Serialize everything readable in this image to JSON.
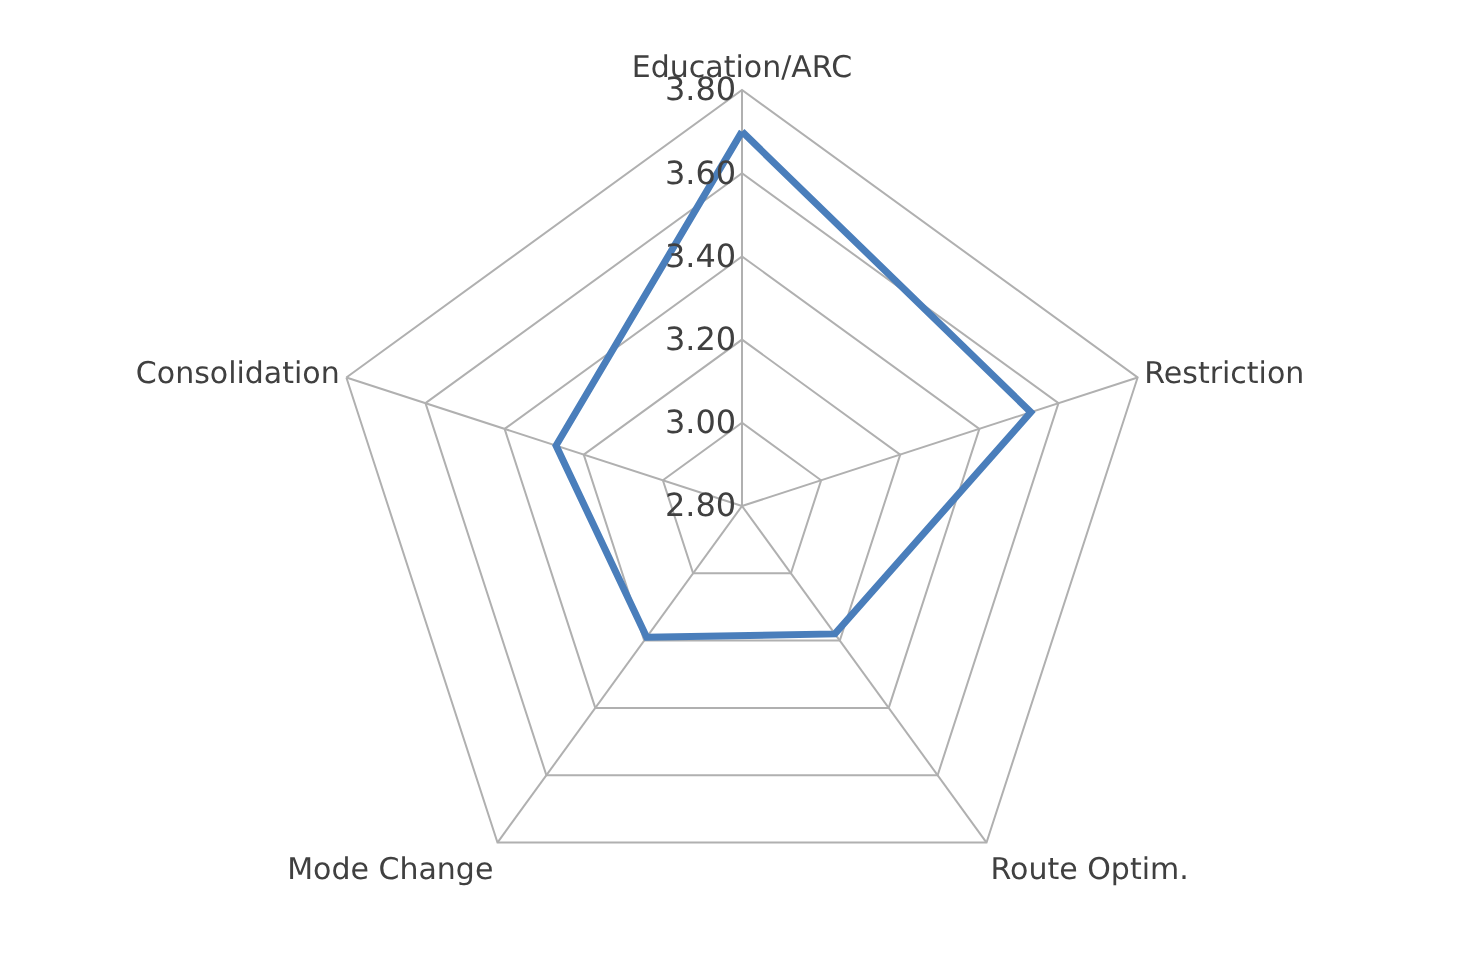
{
  "chart_data": {
    "type": "radar",
    "categories": [
      "Education/ARC",
      "Restriction",
      "Route Optim.",
      "Mode Change",
      "Consolidation"
    ],
    "series": [
      {
        "color": "#4a7ebb",
        "values": [
          3.7,
          3.53,
          3.18,
          3.19,
          3.27
        ]
      }
    ],
    "ylim": [
      2.8,
      3.8
    ],
    "yticks": [
      {
        "value": 2.8,
        "label": "2.80"
      },
      {
        "value": 3.0,
        "label": "3.00"
      },
      {
        "value": 3.2,
        "label": "3.20"
      },
      {
        "value": 3.4,
        "label": "3.40"
      },
      {
        "value": 3.6,
        "label": "3.60"
      },
      {
        "value": 3.8,
        "label": "3.80"
      }
    ],
    "grid": true,
    "marker": "none",
    "line_style": "solid"
  }
}
